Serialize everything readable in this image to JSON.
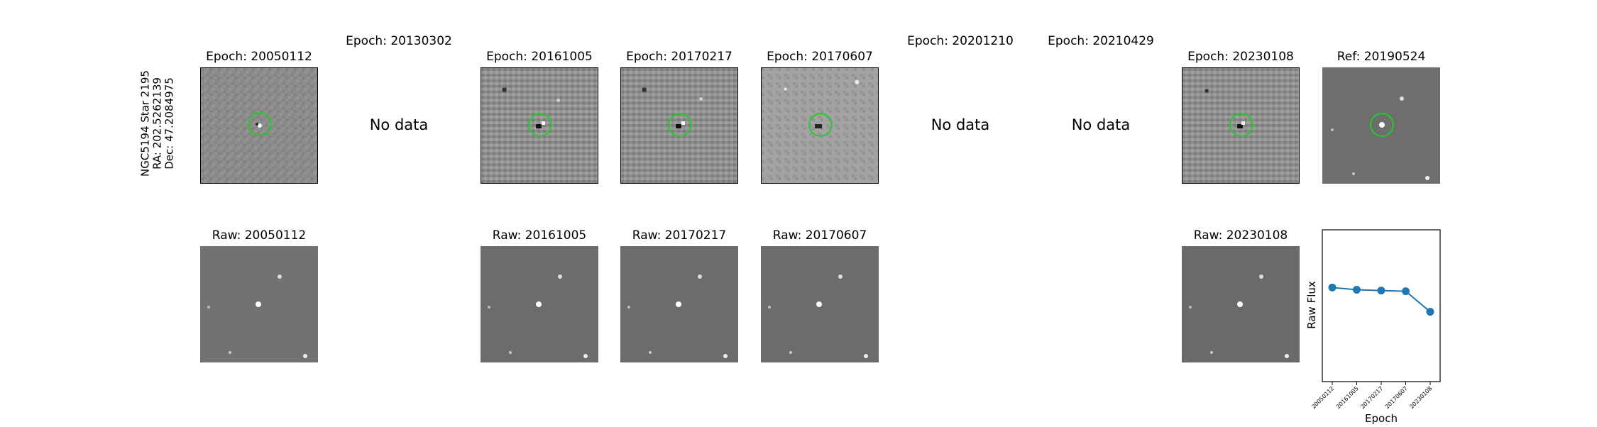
{
  "target": {
    "name": "NGC5194 Star 2195",
    "ra": "RA: 202.5262139",
    "dec": "Dec: 47.2084975"
  },
  "top_row": [
    {
      "title": "Epoch: 20050112",
      "has_data": true
    },
    {
      "title": "Epoch: 20130302",
      "has_data": false,
      "message": "No data"
    },
    {
      "title": "Epoch: 20161005",
      "has_data": true
    },
    {
      "title": "Epoch: 20170217",
      "has_data": true
    },
    {
      "title": "Epoch: 20170607",
      "has_data": true
    },
    {
      "title": "Epoch: 20201210",
      "has_data": false,
      "message": "No data"
    },
    {
      "title": "Epoch: 20210429",
      "has_data": false,
      "message": "No data"
    },
    {
      "title": "Epoch: 20230108",
      "has_data": true
    },
    {
      "title": "Ref: 20190524",
      "has_data": true
    }
  ],
  "bottom_row": [
    {
      "title": "Raw: 20050112"
    },
    {
      "title": "Raw: 20161005"
    },
    {
      "title": "Raw: 20170217"
    },
    {
      "title": "Raw: 20170607"
    },
    {
      "title": "Raw: 20230108"
    }
  ],
  "chart_data": {
    "type": "line",
    "x": [
      "20050112",
      "20161005",
      "20170217",
      "20170607",
      "20230108"
    ],
    "series": [
      {
        "values": [
          0.62,
          0.605,
          0.6,
          0.595,
          0.46
        ]
      }
    ],
    "xlabel": "Epoch",
    "ylabel": "Raw Flux",
    "ylim": [
      0,
      1
    ],
    "grid": false,
    "color": "#1f77b4"
  },
  "colors": {
    "circle": "#22cc22",
    "line": "#1f77b4"
  }
}
